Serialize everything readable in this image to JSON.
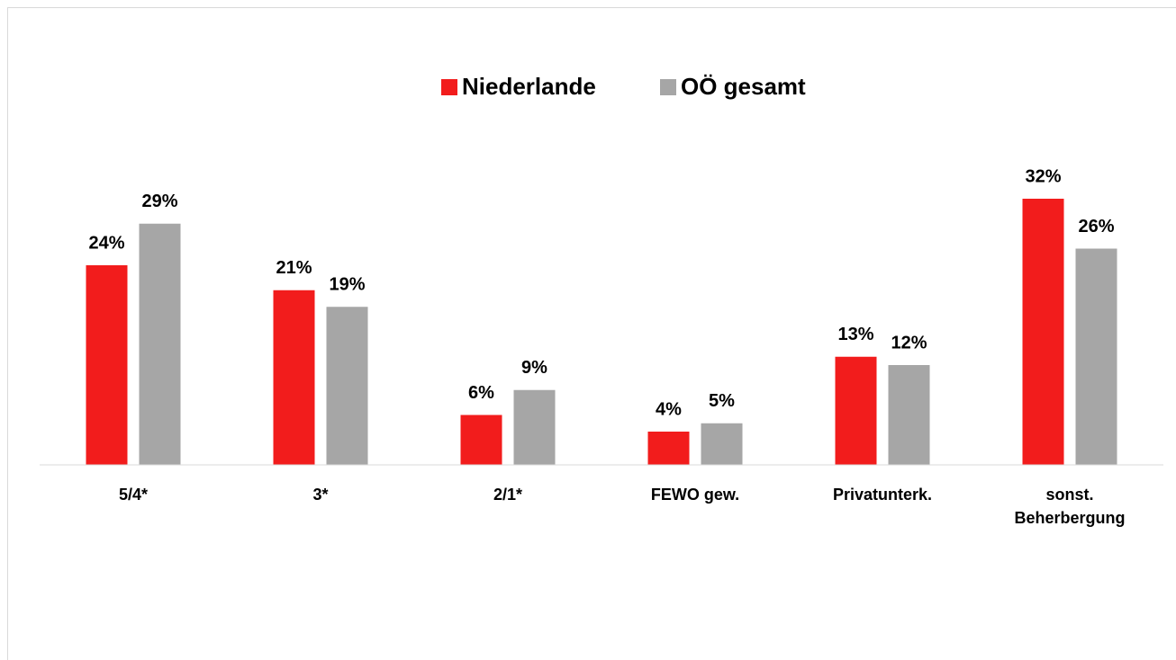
{
  "chart_data": {
    "type": "bar",
    "categories": [
      "5/4*",
      "3*",
      "2/1*",
      "FEWO gew.",
      "Privatunterk.",
      "sonst. Beherbergung"
    ],
    "series": [
      {
        "name": "Niederlande",
        "color": "#f21c1c",
        "values": [
          24,
          21,
          6,
          4,
          13,
          32
        ],
        "value_labels": [
          "24%",
          "21%",
          "6%",
          "4%",
          "13%",
          "32%"
        ]
      },
      {
        "name": "OÖ gesamt",
        "color": "#a6a6a6",
        "values": [
          29,
          19,
          9,
          5,
          12,
          26
        ],
        "value_labels": [
          "29%",
          "19%",
          "9%",
          "5%",
          "12%",
          "26%"
        ]
      }
    ],
    "ylim": [
      0,
      35
    ],
    "legend": "top"
  }
}
